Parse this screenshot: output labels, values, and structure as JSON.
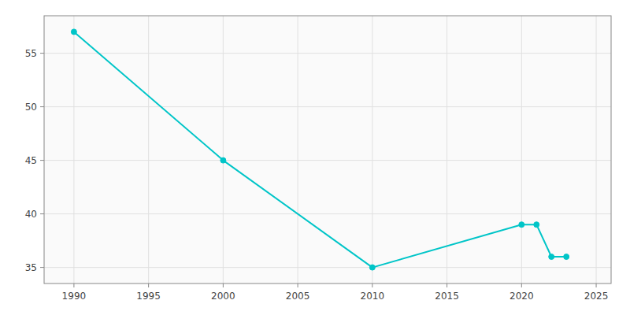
{
  "chart_data": {
    "type": "line",
    "x": [
      1990,
      2000,
      2010,
      2020,
      2021,
      2022,
      2023
    ],
    "values": [
      57,
      45,
      35,
      39,
      39,
      36,
      36
    ],
    "color": "#00C5C8",
    "marker": "circle",
    "xlim": [
      1988,
      2026
    ],
    "ylim": [
      33.5,
      58.5
    ],
    "xticks": [
      1990,
      1995,
      2000,
      2005,
      2010,
      2015,
      2020,
      2025
    ],
    "yticks": [
      35,
      40,
      45,
      50,
      55
    ],
    "grid": true
  }
}
